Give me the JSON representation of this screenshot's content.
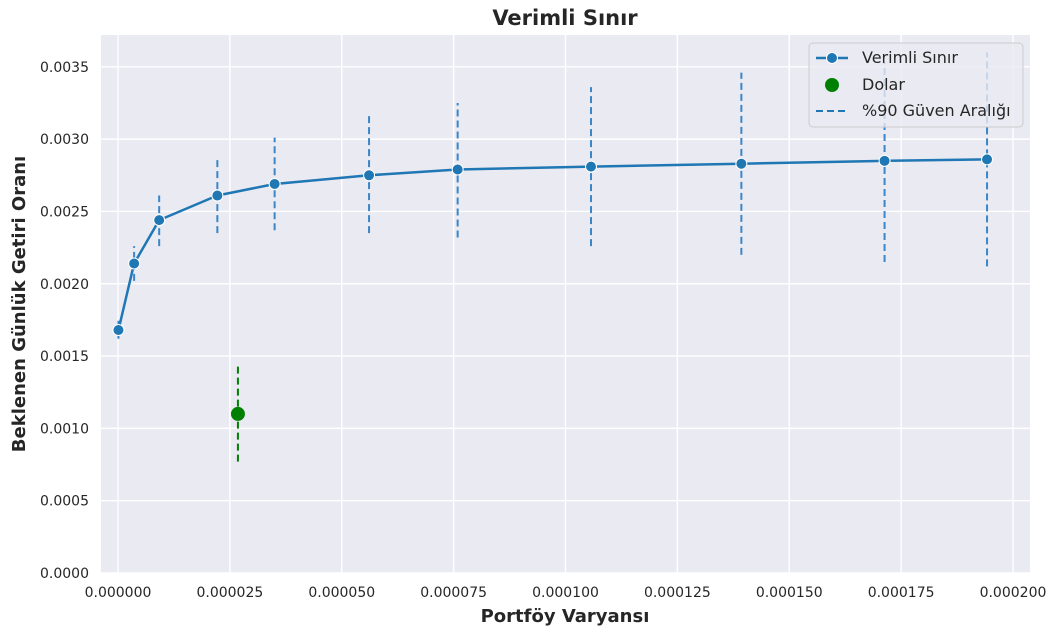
{
  "chart_data": {
    "type": "line",
    "title": "Verimli Sınır",
    "xlabel": "Portföy Varyansı",
    "ylabel": "Beklenen Günlük Getiri Oranı",
    "xlim": [
      -3.8e-06,
      0.0002038
    ],
    "ylim": [
      0,
      0.00372
    ],
    "x_ticks": [
      0.0,
      2.5e-05,
      5e-05,
      7.5e-05,
      0.0001,
      0.000125,
      0.00015,
      0.000175,
      0.0002
    ],
    "x_tick_labels": [
      "0.000000",
      "0.000025",
      "0.000050",
      "0.000075",
      "0.000100",
      "0.000125",
      "0.000150",
      "0.000175",
      "0.000200"
    ],
    "y_ticks": [
      0.0,
      0.0005,
      0.001,
      0.0015,
      0.002,
      0.0025,
      0.003,
      0.0035
    ],
    "y_tick_labels": [
      "0.0000",
      "0.0005",
      "0.0010",
      "0.0015",
      "0.0020",
      "0.0025",
      "0.0030",
      "0.0035"
    ],
    "grid": true,
    "legend_position": "top-right",
    "series": [
      {
        "name": "Verimli Sınır",
        "color": "#1f77b4",
        "x": [
          1e-07,
          3.6e-06,
          9.2e-06,
          2.22e-05,
          3.5e-05,
          5.61e-05,
          7.59e-05,
          0.0001057,
          0.0001393,
          0.0001713,
          0.0001942
        ],
        "y": [
          0.00168,
          0.00214,
          0.00244,
          0.00261,
          0.00269,
          0.00275,
          0.00279,
          0.00281,
          0.00283,
          0.00285,
          0.00286
        ],
        "ci_lower": [
          0.00162,
          0.00202,
          0.00226,
          0.00235,
          0.00237,
          0.00235,
          0.00232,
          0.00226,
          0.0022,
          0.00215,
          0.00212
        ],
        "ci_upper": [
          0.00175,
          0.00226,
          0.00261,
          0.00287,
          0.00301,
          0.00316,
          0.00325,
          0.00336,
          0.00346,
          0.00353,
          0.0036
        ]
      },
      {
        "name": "Dolar",
        "color": "#008000",
        "x": [
          2.68e-05
        ],
        "y": [
          0.0011
        ],
        "ci_lower": [
          0.00077
        ],
        "ci_upper": [
          0.00143
        ]
      }
    ],
    "legend": [
      {
        "label": "Verimli Sınır",
        "kind": "line-marker",
        "color": "#1f77b4"
      },
      {
        "label": "Dolar",
        "kind": "marker",
        "color": "#008000"
      },
      {
        "label": "%90 Güven Aralığı",
        "kind": "dashed",
        "color": "#1f77b4"
      }
    ]
  }
}
